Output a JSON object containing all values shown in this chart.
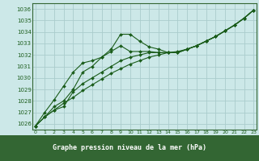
{
  "xlabel": "Graphe pression niveau de la mer (hPa)",
  "ylim": [
    1025.5,
    1036.5
  ],
  "xlim": [
    -0.3,
    23.3
  ],
  "yticks": [
    1026,
    1027,
    1028,
    1029,
    1030,
    1031,
    1032,
    1033,
    1034,
    1035,
    1036
  ],
  "xticks": [
    0,
    1,
    2,
    3,
    4,
    5,
    6,
    7,
    8,
    9,
    10,
    11,
    12,
    13,
    14,
    15,
    16,
    17,
    18,
    19,
    20,
    21,
    22,
    23
  ],
  "bg_color": "#cce8e8",
  "grid_color": "#aacccc",
  "line_color": "#1a5c1a",
  "marker_color": "#1a5c1a",
  "border_color": "#336633",
  "xlabel_bg": "#336633",
  "xlabel_fg": "#ffffff",
  "series": {
    "line1": [
      1025.8,
      1026.6,
      1027.2,
      1027.8,
      1028.3,
      1028.9,
      1029.4,
      1029.9,
      1030.4,
      1030.8,
      1031.2,
      1031.5,
      1031.8,
      1032.0,
      1032.2,
      1032.3,
      1032.5,
      1032.8,
      1033.2,
      1033.6,
      1034.1,
      1034.6,
      1035.2,
      1035.9
    ],
    "line2": [
      1025.8,
      1027.0,
      1028.1,
      1029.3,
      1030.5,
      1031.3,
      1031.5,
      1031.8,
      1032.3,
      1032.8,
      1032.3,
      1032.3,
      1032.3,
      1032.2,
      1032.2,
      1032.2,
      1032.5,
      1032.8,
      1033.2,
      1033.6,
      1034.1,
      1034.6,
      1035.2,
      1035.9
    ],
    "line3": [
      1025.8,
      1026.6,
      1027.5,
      1028.0,
      1029.0,
      1030.5,
      1031.0,
      1031.8,
      1032.5,
      1033.8,
      1033.8,
      1033.2,
      1032.7,
      1032.5,
      1032.2,
      1032.2,
      1032.5,
      1032.8,
      1033.2,
      1033.6,
      1034.1,
      1034.6,
      1035.2,
      1035.9
    ],
    "line4": [
      1025.8,
      1026.6,
      1027.2,
      1027.5,
      1028.8,
      1029.5,
      1030.0,
      1030.5,
      1031.0,
      1031.5,
      1031.8,
      1032.0,
      1032.2,
      1032.2,
      1032.2,
      1032.2,
      1032.5,
      1032.8,
      1033.2,
      1033.6,
      1034.1,
      1034.6,
      1035.2,
      1035.9
    ]
  }
}
